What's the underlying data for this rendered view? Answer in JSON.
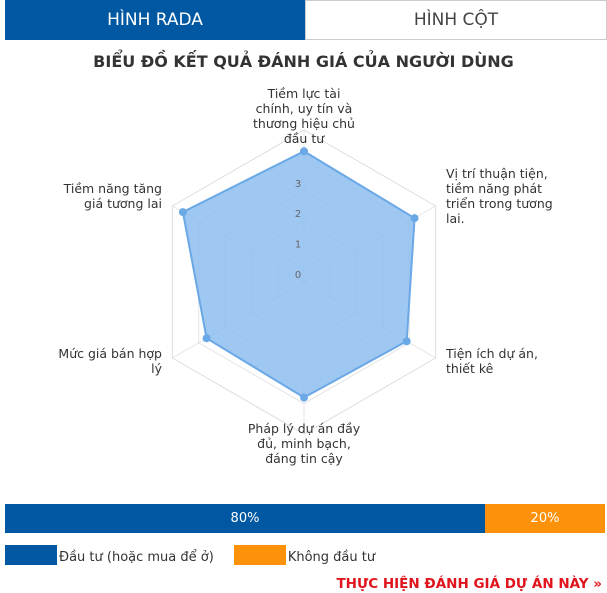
{
  "tabs": [
    {
      "label": "HÌNH RADA",
      "active": true
    },
    {
      "label": "HÌNH CỘT",
      "active": false
    }
  ],
  "title": "BIỂU ĐỒ KẾT QUẢ ĐÁNH GIÁ CỦA NGƯỜI DÙNG",
  "chart_data": {
    "type": "radar",
    "axes": [
      {
        "label": [
          "Tiềm lực tài",
          "chính, uy tín và",
          "thương hiệu chủ",
          "đầu tư"
        ]
      },
      {
        "label": [
          "Vị trí thuận tiện,",
          "tiềm năng phát",
          "triển trong tương",
          "lai."
        ]
      },
      {
        "label": [
          "Tiện ích dự án,",
          "thiết kê"
        ]
      },
      {
        "label": [
          "Pháp lý dự án đầy",
          "đủ, minh bạch,",
          "đáng tin cậy"
        ]
      },
      {
        "label": [
          "Mức giá bán hợp",
          "lý"
        ]
      },
      {
        "label": [
          "Tiềm năng tăng",
          "giá tương lai"
        ]
      }
    ],
    "values": [
      4.3,
      4.2,
      3.9,
      3.8,
      3.7,
      4.6
    ],
    "ticks": [
      "0",
      "1",
      "2",
      "3"
    ],
    "range": [
      0,
      5
    ],
    "fill_color": "#8dbdee",
    "line_color": "#6aa8e6",
    "grid": true
  },
  "distribution": [
    {
      "label": "Đầu tư (hoặc mua để ở)",
      "percent": 80,
      "text": "80%",
      "color": "#0158a2"
    },
    {
      "label": "Không đầu tư",
      "percent": 20,
      "text": "20%",
      "color": "#fb9209"
    }
  ],
  "cta": "THỰC HIỆN ĐÁNH GIÁ DỰ ÁN NÀY »"
}
